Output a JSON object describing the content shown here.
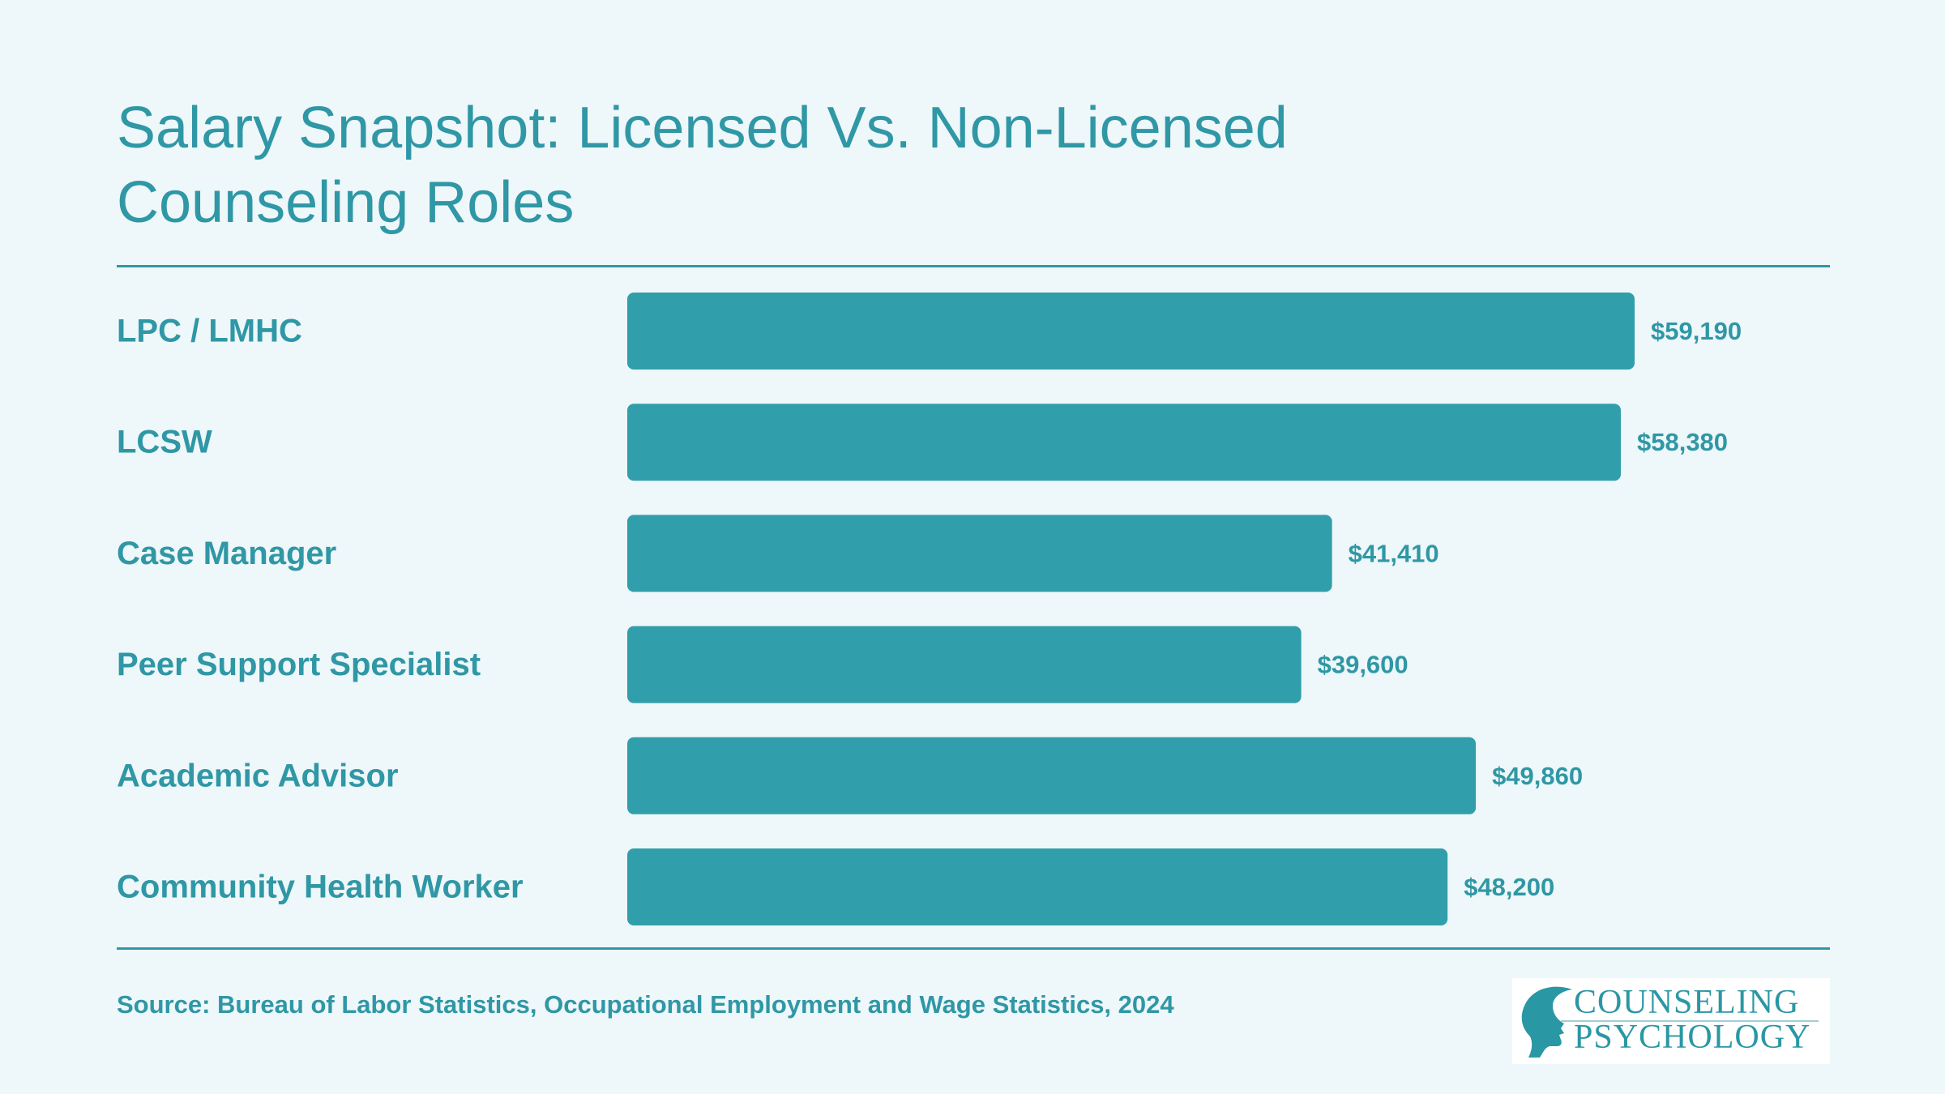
{
  "title_lines": [
    "Salary Snapshot: Licensed Vs. Non-Licensed",
    "Counseling Roles"
  ],
  "source": "Source: Bureau of Labor Statistics, Occupational Employment and Wage Statistics, 2024",
  "logo": {
    "line1": "COUNSELING",
    "line2": "PSYCHOLOGY",
    "icon": "head-profile-icon"
  },
  "colors": {
    "background": "#eef7f9",
    "accent": "#2f97a5",
    "bar": "#319eab"
  },
  "chart_data": {
    "type": "bar",
    "orientation": "horizontal",
    "title": "Salary Snapshot: Licensed Vs. Non-Licensed Counseling Roles",
    "categories": [
      "LPC / LMHC",
      "LCSW",
      "Case Manager",
      "Peer Support Specialist",
      "Academic Advisor",
      "Community Health Worker"
    ],
    "values": [
      59190,
      58380,
      41410,
      39600,
      49860,
      48200
    ],
    "value_labels": [
      "$59,190",
      "$58,380",
      "$41,410",
      "$39,600",
      "$49,860",
      "$48,200"
    ],
    "xlabel": "",
    "ylabel": "",
    "grid": false,
    "legend": "none"
  }
}
